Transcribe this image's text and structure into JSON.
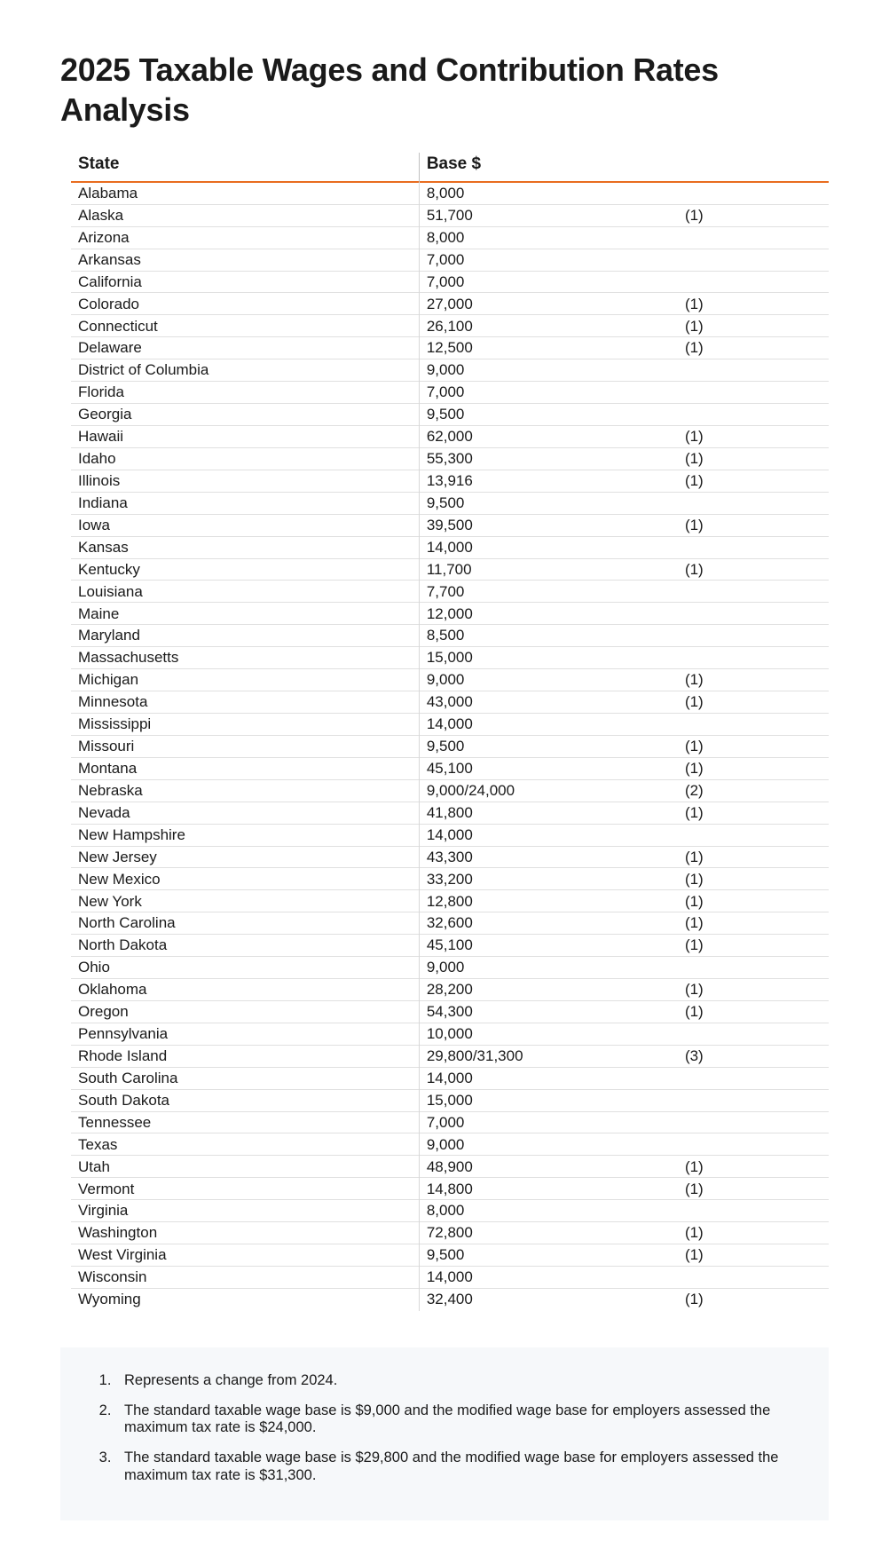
{
  "title": "2025 Taxable Wages and Contribution Rates Analysis",
  "table": {
    "columns": [
      "State",
      "Base $",
      ""
    ],
    "header_fontsize": 19,
    "body_fontsize": 17,
    "accent_border_color": "#e96d1f",
    "row_border_color": "#e0e0e0",
    "divider_color": "#bfbfbf",
    "rows": [
      {
        "state": "Alabama",
        "base": "8,000",
        "note": ""
      },
      {
        "state": "Alaska",
        "base": "51,700",
        "note": "(1)"
      },
      {
        "state": "Arizona",
        "base": "8,000",
        "note": ""
      },
      {
        "state": "Arkansas",
        "base": "7,000",
        "note": ""
      },
      {
        "state": "California",
        "base": "7,000",
        "note": ""
      },
      {
        "state": "Colorado",
        "base": "27,000",
        "note": "(1)"
      },
      {
        "state": "Connecticut",
        "base": "26,100",
        "note": "(1)"
      },
      {
        "state": "Delaware",
        "base": "12,500",
        "note": "(1)"
      },
      {
        "state": "District of Columbia",
        "base": "9,000",
        "note": ""
      },
      {
        "state": "Florida",
        "base": "7,000",
        "note": ""
      },
      {
        "state": "Georgia",
        "base": "9,500",
        "note": ""
      },
      {
        "state": "Hawaii",
        "base": "62,000",
        "note": "(1)"
      },
      {
        "state": "Idaho",
        "base": "55,300",
        "note": "(1)"
      },
      {
        "state": "Illinois",
        "base": "13,916",
        "note": "(1)"
      },
      {
        "state": "Indiana",
        "base": "9,500",
        "note": ""
      },
      {
        "state": "Iowa",
        "base": "39,500",
        "note": "(1)"
      },
      {
        "state": "Kansas",
        "base": "14,000",
        "note": ""
      },
      {
        "state": "Kentucky",
        "base": "11,700",
        "note": "(1)"
      },
      {
        "state": "Louisiana",
        "base": "7,700",
        "note": ""
      },
      {
        "state": "Maine",
        "base": "12,000",
        "note": ""
      },
      {
        "state": "Maryland",
        "base": "8,500",
        "note": ""
      },
      {
        "state": "Massachusetts",
        "base": "15,000",
        "note": ""
      },
      {
        "state": "Michigan",
        "base": "9,000",
        "note": "(1)"
      },
      {
        "state": "Minnesota",
        "base": "43,000",
        "note": "(1)"
      },
      {
        "state": "Mississippi",
        "base": "14,000",
        "note": ""
      },
      {
        "state": "Missouri",
        "base": "9,500",
        "note": "(1)"
      },
      {
        "state": "Montana",
        "base": "45,100",
        "note": "(1)"
      },
      {
        "state": "Nebraska",
        "base": "9,000/24,000",
        "note": "(2)"
      },
      {
        "state": "Nevada",
        "base": "41,800",
        "note": "(1)"
      },
      {
        "state": "New Hampshire",
        "base": "14,000",
        "note": ""
      },
      {
        "state": "New Jersey",
        "base": "43,300",
        "note": "(1)"
      },
      {
        "state": "New Mexico",
        "base": "33,200",
        "note": "(1)"
      },
      {
        "state": "New York",
        "base": "12,800",
        "note": "(1)"
      },
      {
        "state": "North Carolina",
        "base": "32,600",
        "note": "(1)"
      },
      {
        "state": "North Dakota",
        "base": "45,100",
        "note": "(1)"
      },
      {
        "state": "Ohio",
        "base": "9,000",
        "note": ""
      },
      {
        "state": "Oklahoma",
        "base": "28,200",
        "note": "(1)"
      },
      {
        "state": "Oregon",
        "base": "54,300",
        "note": "(1)"
      },
      {
        "state": "Pennsylvania",
        "base": "10,000",
        "note": ""
      },
      {
        "state": "Rhode Island",
        "base": "29,800/31,300",
        "note": "(3)"
      },
      {
        "state": "South Carolina",
        "base": "14,000",
        "note": ""
      },
      {
        "state": "South Dakota",
        "base": "15,000",
        "note": ""
      },
      {
        "state": "Tennessee",
        "base": "7,000",
        "note": ""
      },
      {
        "state": "Texas",
        "base": "9,000",
        "note": ""
      },
      {
        "state": "Utah",
        "base": "48,900",
        "note": "(1)"
      },
      {
        "state": "Vermont",
        "base": "14,800",
        "note": "(1)"
      },
      {
        "state": "Virginia",
        "base": "8,000",
        "note": ""
      },
      {
        "state": "Washington",
        "base": "72,800",
        "note": "(1)"
      },
      {
        "state": "West Virginia",
        "base": "9,500",
        "note": "(1)"
      },
      {
        "state": "Wisconsin",
        "base": "14,000",
        "note": ""
      },
      {
        "state": "Wyoming",
        "base": "32,400",
        "note": "(1)"
      }
    ]
  },
  "footnotes": {
    "background_color": "#f6f8fa",
    "fontsize": 16.5,
    "items": [
      "Represents a change from 2024.",
      "The standard taxable wage base is $9,000 and the modified wage base for employers assessed the maximum tax rate is $24,000.",
      "The standard taxable wage base is $29,800 and the modified wage base for employers assessed the maximum tax rate is $31,300."
    ]
  }
}
